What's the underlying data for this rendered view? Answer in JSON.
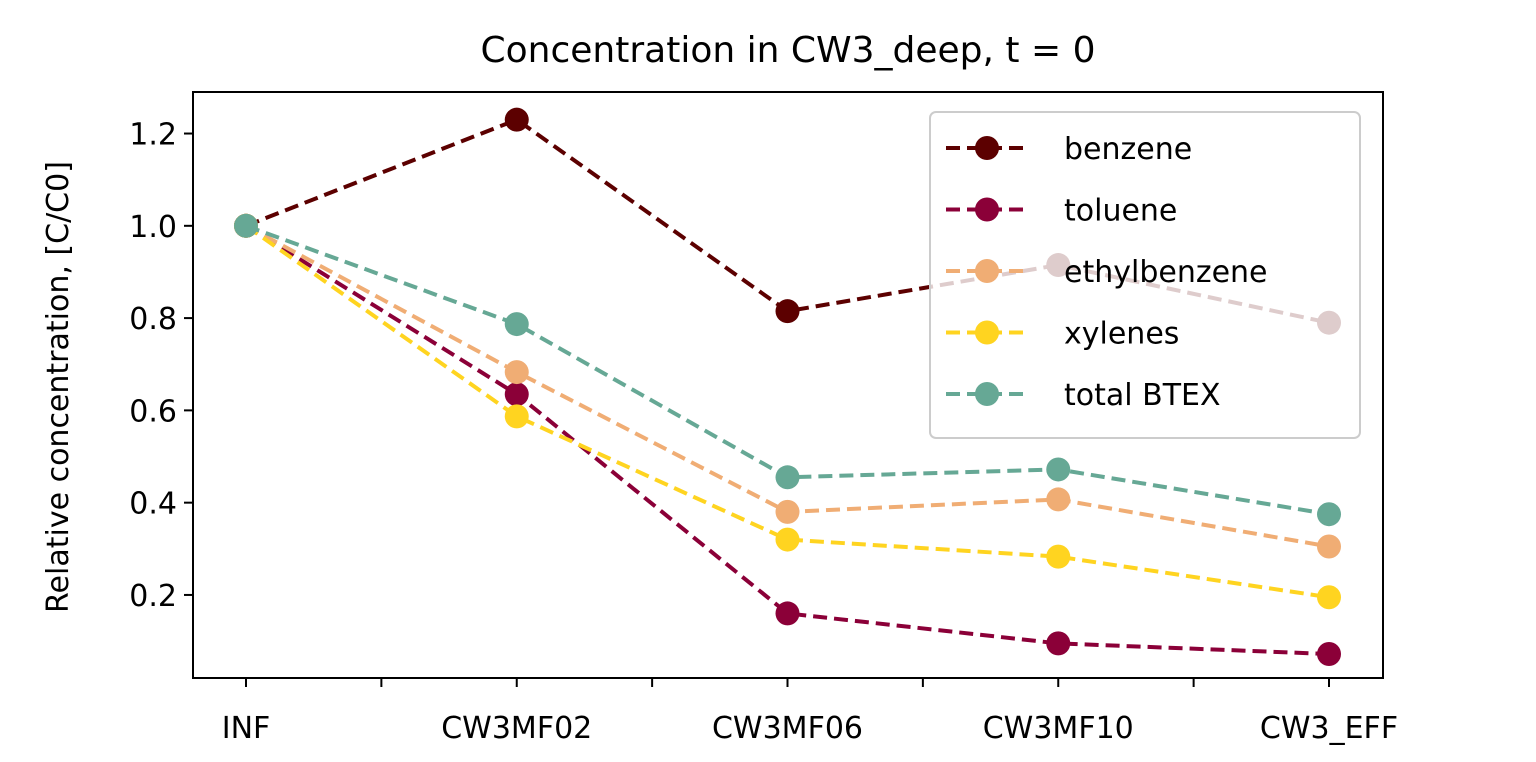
{
  "chart_data": {
    "type": "line",
    "title": "Concentration in CW3_deep, t = 0",
    "xlabel": "",
    "ylabel": "Relative concentration, [C/C0]",
    "categories": [
      "INF",
      "CW3MF02",
      "CW3MF06",
      "CW3MF10",
      "CW3_EFF"
    ],
    "ylim": [
      0.02,
      1.29
    ],
    "yticks": [
      0.2,
      0.4,
      0.6,
      0.8,
      1.0,
      1.2
    ],
    "ytick_labels": [
      "0.2",
      "0.4",
      "0.6",
      "0.8",
      "1.0",
      "1.2"
    ],
    "line_style": "dashed",
    "marker": "circle",
    "grid": false,
    "legend_position": "top-right",
    "series": [
      {
        "name": "benzene",
        "color": "#5c0000",
        "values": [
          1.0,
          1.23,
          0.815,
          0.915,
          0.79
        ]
      },
      {
        "name": "toluene",
        "color": "#8b0038",
        "values": [
          1.0,
          0.635,
          0.16,
          0.095,
          0.072
        ]
      },
      {
        "name": "ethylbenzene",
        "color": "#f0ad74",
        "values": [
          1.0,
          0.683,
          0.38,
          0.407,
          0.305
        ]
      },
      {
        "name": "xylenes",
        "color": "#ffd420",
        "values": [
          1.0,
          0.587,
          0.32,
          0.283,
          0.195
        ]
      },
      {
        "name": "total BTEX",
        "color": "#66a895",
        "values": [
          1.0,
          0.787,
          0.455,
          0.472,
          0.375
        ]
      }
    ]
  }
}
